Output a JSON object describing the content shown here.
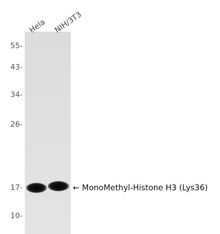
{
  "lanes": [
    "Hela",
    "NIH/3T3"
  ],
  "markers": [
    "55-",
    "43-",
    "34-",
    "26-",
    "17-",
    "10-"
  ],
  "band_label": "← MonoMethyl-Histone H3 (Lys36)"
}
